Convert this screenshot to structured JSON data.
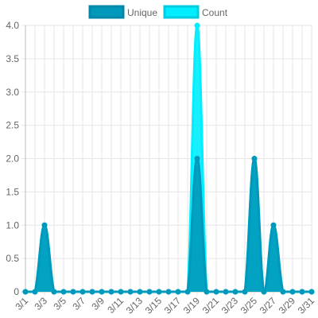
{
  "chart_data": {
    "type": "area",
    "x": [
      "3/1",
      "3/2",
      "3/3",
      "3/4",
      "3/5",
      "3/6",
      "3/7",
      "3/8",
      "3/9",
      "3/10",
      "3/11",
      "3/12",
      "3/13",
      "3/14",
      "3/15",
      "3/16",
      "3/17",
      "3/18",
      "3/19",
      "3/20",
      "3/21",
      "3/22",
      "3/23",
      "3/24",
      "3/25",
      "3/26",
      "3/27",
      "3/28",
      "3/29",
      "3/30",
      "3/31"
    ],
    "x_tick_labels": [
      "3/1",
      "3/3",
      "3/5",
      "3/7",
      "3/9",
      "3/11",
      "3/13",
      "3/15",
      "3/17",
      "3/19",
      "3/21",
      "3/23",
      "3/25",
      "3/27",
      "3/29",
      "3/31"
    ],
    "series": [
      {
        "name": "Unique",
        "color": "#0099bb",
        "values": [
          0,
          0,
          1,
          0,
          0,
          0,
          0,
          0,
          0,
          0,
          0,
          0,
          0,
          0,
          0,
          0,
          0,
          0,
          2,
          0,
          0,
          0,
          0,
          0,
          2,
          0,
          1,
          0,
          0,
          0,
          0
        ]
      },
      {
        "name": "Count",
        "color": "#00eeff",
        "values": [
          0,
          0,
          1,
          0,
          0,
          0,
          0,
          0,
          0,
          0,
          0,
          0,
          0,
          0,
          0,
          0,
          0,
          0,
          4,
          0,
          0,
          0,
          0,
          0,
          2,
          0,
          1,
          0,
          0,
          0,
          0
        ]
      }
    ],
    "ylim": [
      0,
      4
    ],
    "y_ticks": [
      "0",
      "0.5",
      "1.0",
      "1.5",
      "2.0",
      "2.5",
      "3.0",
      "3.5",
      "4.0"
    ],
    "grid": true,
    "legend_position": "top-center"
  }
}
